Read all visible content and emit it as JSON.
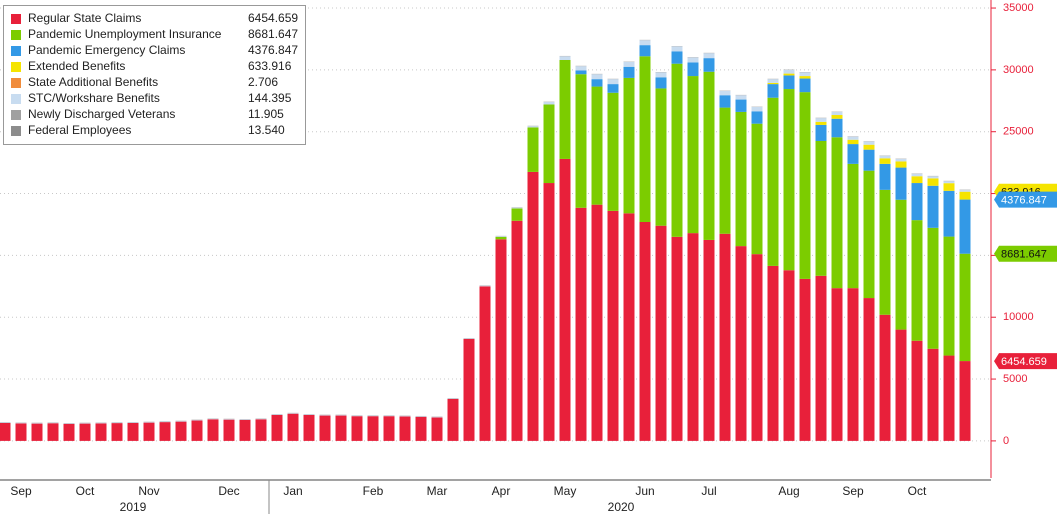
{
  "chart_data": {
    "type": "stacked_bar",
    "categories": [
      null,
      "Sep",
      null,
      null,
      null,
      "Oct",
      null,
      null,
      null,
      "Nov",
      null,
      null,
      null,
      null,
      "Dec",
      null,
      null,
      null,
      "Jan",
      null,
      null,
      null,
      null,
      "Feb",
      null,
      null,
      null,
      "Mar",
      null,
      null,
      null,
      "Apr",
      null,
      null,
      null,
      "May",
      null,
      null,
      null,
      null,
      "Jun",
      null,
      null,
      null,
      "Jul",
      null,
      null,
      null,
      null,
      "Aug",
      null,
      null,
      null,
      "Sep",
      null,
      null,
      null,
      "Oct",
      null,
      null,
      null
    ],
    "x_groups": [
      {
        "label": "2019",
        "from": 0,
        "to": 16
      },
      {
        "label": "2020",
        "from": 17,
        "to": 60
      }
    ],
    "ylim": [
      -3000,
      35650
    ],
    "yticks": [
      0,
      5000,
      10000,
      15000,
      20000,
      25000,
      30000,
      35000
    ],
    "grid": true,
    "legend": "top-left",
    "series": [
      {
        "name": "Regular State Claims",
        "color": "#e8203a",
        "tag": true,
        "last_value_label": "6454.659",
        "values": [
          1450,
          1420,
          1400,
          1430,
          1380,
          1400,
          1420,
          1440,
          1450,
          1480,
          1520,
          1560,
          1650,
          1750,
          1720,
          1700,
          1750,
          2100,
          2200,
          2100,
          2050,
          2050,
          2000,
          2000,
          2000,
          1980,
          1950,
          1900,
          3400,
          8250,
          12500,
          16300,
          17800,
          21750,
          20850,
          22800,
          18850,
          19100,
          18600,
          18400,
          17700,
          17400,
          16500,
          16800,
          16250,
          16750,
          15750,
          15100,
          14150,
          13800,
          13100,
          13350,
          12350,
          12350,
          11550,
          10200,
          9000,
          8100,
          7450,
          6900,
          6454.659
        ]
      },
      {
        "name": "Pandemic Unemployment Insurance",
        "color": "#7ccc00",
        "tag": true,
        "last_value_label": "8681.647",
        "values": [
          0,
          0,
          0,
          0,
          0,
          0,
          0,
          0,
          0,
          0,
          0,
          0,
          0,
          0,
          0,
          0,
          0,
          0,
          0,
          0,
          0,
          0,
          0,
          0,
          0,
          0,
          0,
          0,
          0,
          0,
          0,
          200,
          1000,
          3600,
          6350,
          8000,
          10800,
          9550,
          9550,
          10950,
          13400,
          11100,
          14000,
          12700,
          13600,
          10200,
          10850,
          10550,
          13600,
          14650,
          15100,
          10900,
          12200,
          10050,
          10300,
          10100,
          10500,
          9750,
          9780,
          9620,
          8681.647
        ]
      },
      {
        "name": "Pandemic Emergency Claims",
        "color": "#3399e6",
        "tag": true,
        "last_value_label": "4376.847",
        "values": [
          0,
          0,
          0,
          0,
          0,
          0,
          0,
          0,
          0,
          0,
          0,
          0,
          0,
          0,
          0,
          0,
          0,
          0,
          0,
          0,
          0,
          0,
          0,
          0,
          0,
          0,
          0,
          0,
          0,
          0,
          0,
          0,
          0,
          0,
          0,
          0,
          300,
          600,
          700,
          900,
          900,
          900,
          1000,
          1100,
          1100,
          1000,
          1000,
          1000,
          1100,
          1100,
          1100,
          1300,
          1500,
          1600,
          1700,
          2100,
          2600,
          3000,
          3400,
          3700,
          4376.847
        ]
      },
      {
        "name": "Extended Benefits",
        "color": "#f5e400",
        "tag": true,
        "last_value_label": "633.916",
        "values": [
          0,
          0,
          0,
          0,
          0,
          0,
          0,
          0,
          0,
          0,
          0,
          0,
          0,
          0,
          0,
          0,
          0,
          0,
          0,
          0,
          0,
          0,
          0,
          0,
          0,
          0,
          0,
          0,
          0,
          0,
          0,
          0,
          0,
          0,
          0,
          0,
          0,
          0,
          0,
          0,
          0,
          0,
          0,
          0,
          0,
          0,
          0,
          0,
          100,
          150,
          200,
          250,
          300,
          350,
          400,
          450,
          500,
          550,
          600,
          620,
          633.916
        ]
      },
      {
        "name": "State Additional Benefits",
        "color": "#f08c3c",
        "last_value_label": "2.706",
        "values": [
          0,
          0,
          0,
          0,
          0,
          0,
          0,
          0,
          0,
          0,
          0,
          0,
          0,
          0,
          0,
          0,
          0,
          0,
          0,
          0,
          0,
          0,
          0,
          0,
          0,
          0,
          0,
          0,
          0,
          0,
          0,
          0,
          0,
          0,
          0,
          0,
          0,
          0,
          0,
          0,
          0,
          0,
          0,
          0,
          0,
          0,
          0,
          0,
          0,
          0,
          0,
          0,
          0,
          0,
          0,
          0,
          0,
          0,
          0,
          0,
          2.706
        ]
      },
      {
        "name": "STC/Workshare Benefits",
        "color": "#c8dcf0",
        "last_value_label": "144.395",
        "values": [
          40,
          40,
          40,
          40,
          40,
          40,
          40,
          40,
          40,
          40,
          40,
          40,
          40,
          40,
          40,
          40,
          40,
          40,
          40,
          40,
          40,
          40,
          40,
          40,
          40,
          40,
          40,
          40,
          40,
          40,
          50,
          50,
          60,
          100,
          200,
          300,
          350,
          400,
          400,
          400,
          400,
          400,
          400,
          400,
          400,
          350,
          350,
          350,
          300,
          300,
          300,
          300,
          250,
          250,
          250,
          200,
          200,
          200,
          170,
          160,
          144.395
        ]
      },
      {
        "name": "Newly Discharged Veterans",
        "color": "#a0a0a0",
        "last_value_label": "11.905",
        "values": [
          10,
          10,
          10,
          10,
          10,
          10,
          10,
          10,
          10,
          10,
          10,
          10,
          10,
          10,
          10,
          10,
          10,
          10,
          10,
          10,
          10,
          10,
          10,
          10,
          10,
          10,
          10,
          10,
          10,
          10,
          10,
          10,
          10,
          10,
          10,
          10,
          10,
          10,
          10,
          10,
          10,
          10,
          10,
          10,
          10,
          10,
          10,
          10,
          10,
          10,
          10,
          10,
          10,
          10,
          10,
          10,
          10,
          10,
          10,
          10,
          11.905
        ]
      },
      {
        "name": "Federal Employees",
        "color": "#8c8c8c",
        "last_value_label": "13.540",
        "values": [
          15,
          15,
          15,
          15,
          15,
          15,
          15,
          15,
          15,
          15,
          15,
          15,
          15,
          15,
          15,
          15,
          15,
          15,
          15,
          15,
          15,
          15,
          15,
          15,
          15,
          15,
          15,
          15,
          15,
          15,
          15,
          15,
          15,
          15,
          15,
          15,
          15,
          15,
          15,
          15,
          15,
          15,
          15,
          15,
          15,
          15,
          15,
          15,
          15,
          15,
          15,
          15,
          15,
          15,
          15,
          15,
          15,
          15,
          15,
          15,
          13.54
        ]
      }
    ]
  }
}
